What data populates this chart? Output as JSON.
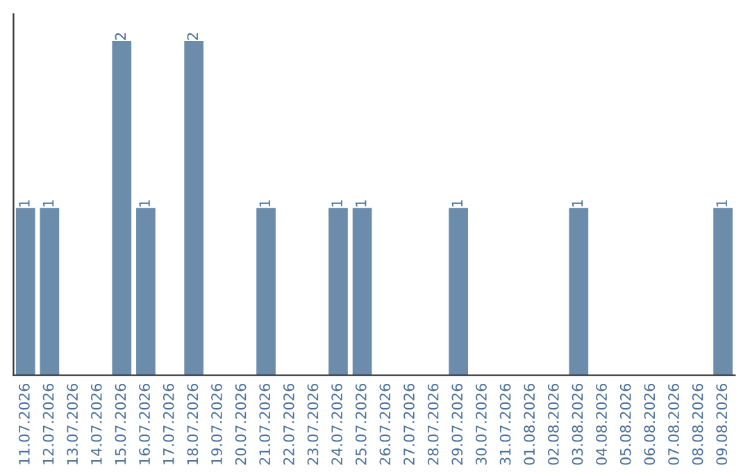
{
  "chart_data": {
    "type": "bar",
    "categories": [
      "11.07.2026",
      "12.07.2026",
      "13.07.2026",
      "14.07.2026",
      "15.07.2026",
      "16.07.2026",
      "17.07.2026",
      "18.07.2026",
      "19.07.2026",
      "20.07.2026",
      "21.07.2026",
      "22.07.2026",
      "23.07.2026",
      "24.07.2026",
      "25.07.2026",
      "26.07.2026",
      "27.07.2026",
      "28.07.2026",
      "29.07.2026",
      "30.07.2026",
      "31.07.2026",
      "01.08.2026",
      "02.08.2026",
      "03.08.2026",
      "04.08.2026",
      "05.08.2026",
      "06.08.2026",
      "07.08.2026",
      "08.08.2026",
      "09.08.2026"
    ],
    "values": [
      1,
      1,
      0,
      0,
      2,
      1,
      0,
      2,
      0,
      0,
      1,
      0,
      0,
      1,
      1,
      0,
      0,
      0,
      1,
      0,
      0,
      0,
      0,
      1,
      0,
      0,
      0,
      0,
      0,
      1
    ],
    "value_labels": [
      "1",
      "1",
      null,
      null,
      "2",
      "1",
      null,
      "2",
      null,
      null,
      "1",
      null,
      null,
      "1",
      "1",
      null,
      null,
      null,
      "1",
      null,
      null,
      null,
      null,
      "1",
      null,
      null,
      null,
      null,
      null,
      "1"
    ],
    "color": "#6b8cab",
    "grid": false,
    "legend": false
  }
}
